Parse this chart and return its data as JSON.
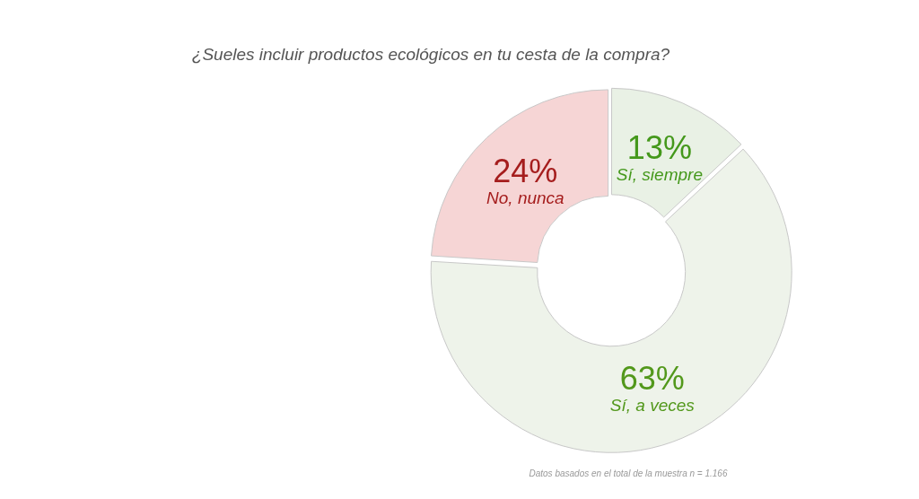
{
  "chart_data": {
    "type": "donut",
    "title": "¿Sueles incluir productos ecológicos en tu cesta de la compra?",
    "categories": [
      "Sí, siempre",
      "Sí, a veces",
      "No, nunca"
    ],
    "values": [
      13,
      63,
      24
    ],
    "colors": [
      "#e9f1e5",
      "#eef3ea",
      "#f6d5d5"
    ],
    "value_labels": [
      "13%",
      "63%",
      "24%"
    ],
    "legend": false,
    "annotations": [
      "Datos basados en el total de la muestra n = 1.166"
    ]
  }
}
